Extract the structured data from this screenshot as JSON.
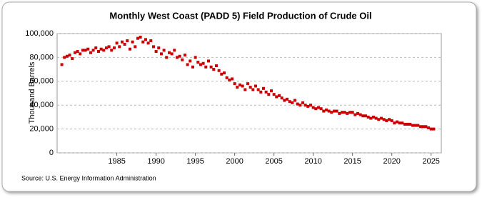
{
  "chart_data": {
    "type": "scatter",
    "title": "Monthly West Coast (PADD 5) Field Production of Crude Oil",
    "y_label": "Thousand Barrels",
    "source": "Source: U.S. Energy Information Administration",
    "xlim": [
      1977.4,
      2026.3
    ],
    "xticks": [
      1985,
      1990,
      1995,
      2000,
      2005,
      2010,
      2015,
      2020,
      2025
    ],
    "ylim": [
      0,
      100000
    ],
    "yticks": [
      0,
      {
        "value": 20000,
        "label": "20,000"
      },
      {
        "value": 40000,
        "label": "40,000"
      },
      {
        "value": 60000,
        "label": "60,000"
      },
      {
        "value": 80000,
        "label": "80,000"
      },
      {
        "value": 100000,
        "label": "100,000"
      }
    ],
    "grid": true,
    "series": [
      {
        "name": "West Coast (PADD 5) Field Production of Crude Oil",
        "color": "#cc0000",
        "x": [
          1978,
          1978.33,
          1978.67,
          1979,
          1979.33,
          1979.67,
          1980,
          1980.33,
          1980.67,
          1981,
          1981.33,
          1981.67,
          1982,
          1982.33,
          1982.67,
          1983,
          1983.33,
          1983.67,
          1984,
          1984.33,
          1984.67,
          1985,
          1985.33,
          1985.67,
          1986,
          1986.33,
          1986.67,
          1987,
          1987.33,
          1987.67,
          1988,
          1988.33,
          1988.67,
          1989,
          1989.33,
          1989.67,
          1990,
          1990.33,
          1990.67,
          1991,
          1991.33,
          1991.67,
          1992,
          1992.33,
          1992.67,
          1993,
          1993.33,
          1993.67,
          1994,
          1994.33,
          1994.67,
          1995,
          1995.33,
          1995.67,
          1996,
          1996.33,
          1996.67,
          1997,
          1997.33,
          1997.67,
          1998,
          1998.33,
          1998.67,
          1999,
          1999.33,
          1999.67,
          2000,
          2000.33,
          2000.67,
          2001,
          2001.33,
          2001.67,
          2002,
          2002.33,
          2002.67,
          2003,
          2003.33,
          2003.67,
          2004,
          2004.33,
          2004.67,
          2005,
          2005.33,
          2005.67,
          2006,
          2006.33,
          2006.67,
          2007,
          2007.33,
          2007.67,
          2008,
          2008.33,
          2008.67,
          2009,
          2009.33,
          2009.67,
          2010,
          2010.33,
          2010.67,
          2011,
          2011.33,
          2011.67,
          2012,
          2012.33,
          2012.67,
          2013,
          2013.33,
          2013.67,
          2014,
          2014.33,
          2014.67,
          2015,
          2015.33,
          2015.67,
          2016,
          2016.33,
          2016.67,
          2017,
          2017.33,
          2017.67,
          2018,
          2018.33,
          2018.67,
          2019,
          2019.33,
          2019.67,
          2020,
          2020.33,
          2020.67,
          2021,
          2021.33,
          2021.67,
          2022,
          2022.33,
          2022.67,
          2023,
          2023.33,
          2023.67,
          2024,
          2024.33,
          2024.67,
          2025,
          2025.33
        ],
        "values": [
          74000,
          80000,
          81000,
          82000,
          79000,
          84000,
          85000,
          83000,
          86000,
          86000,
          87000,
          84000,
          86000,
          88000,
          85000,
          87000,
          86000,
          88000,
          89000,
          86000,
          88000,
          92000,
          89000,
          93000,
          91000,
          94000,
          87000,
          93000,
          89000,
          96000,
          97000,
          93000,
          95000,
          92000,
          94000,
          89000,
          85000,
          88000,
          83000,
          86000,
          80000,
          84000,
          83000,
          86000,
          80000,
          81000,
          78000,
          82000,
          74000,
          77000,
          72000,
          80000,
          76000,
          74000,
          75000,
          72000,
          77000,
          72000,
          70000,
          73000,
          69000,
          66000,
          67000,
          63000,
          61000,
          62000,
          58000,
          55000,
          57000,
          56000,
          53000,
          58000,
          55000,
          53000,
          56000,
          53000,
          51000,
          54000,
          51000,
          49000,
          52000,
          49000,
          47000,
          48000,
          46000,
          44000,
          45000,
          43000,
          42000,
          44000,
          41000,
          40000,
          42000,
          40000,
          39000,
          40000,
          38000,
          37000,
          38000,
          37000,
          35000,
          36000,
          35000,
          34000,
          35000,
          35000,
          33000,
          34000,
          34000,
          33000,
          34000,
          34000,
          32000,
          33000,
          32000,
          31000,
          31000,
          30000,
          29000,
          30000,
          29000,
          28000,
          29000,
          28000,
          27000,
          28000,
          27000,
          25000,
          26000,
          25000,
          25000,
          24000,
          24000,
          24000,
          23000,
          23000,
          23000,
          22000,
          22000,
          22000,
          21000,
          20000,
          20000
        ]
      }
    ]
  }
}
